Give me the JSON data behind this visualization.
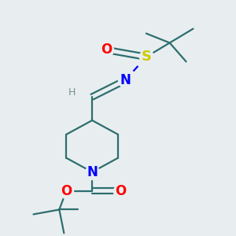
{
  "bg_color": "#e8eef0",
  "bond_color": "#2d6e6e",
  "atom_colors": {
    "N": "#0000ff",
    "O": "#ff0000",
    "S": "#cccc00",
    "H": "#7a9090",
    "C": "#2d6e6e"
  },
  "figsize": [
    3.0,
    3.0
  ],
  "dpi": 100
}
